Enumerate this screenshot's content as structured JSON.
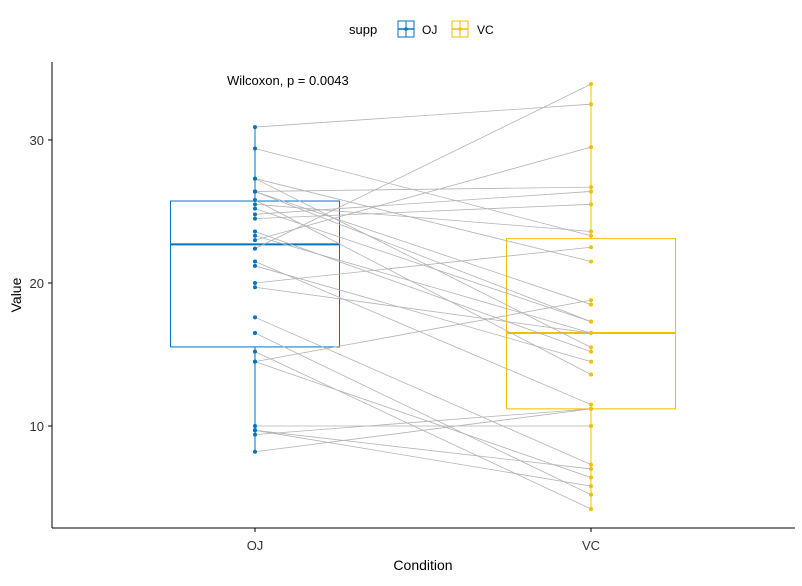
{
  "chart_data": {
    "type": "boxplot-paired",
    "title": "",
    "xlabel": "Condition",
    "ylabel": "Value",
    "ylim": [
      2.87,
      35.45
    ],
    "yticks": [
      10,
      20,
      30
    ],
    "categories": [
      "OJ",
      "VC"
    ],
    "legend": {
      "title": "supp",
      "placement": "top",
      "entries": [
        "OJ",
        "VC"
      ]
    },
    "colors": {
      "OJ": "#0073C2",
      "VC": "#EFC000",
      "lines": "#b3b3b3"
    },
    "annotation": "Wilcoxon, p = 0.0043",
    "grid": false,
    "series": [
      {
        "name": "OJ",
        "values": [
          15.2,
          21.5,
          17.6,
          9.7,
          14.5,
          10,
          8.2,
          9.4,
          16.5,
          9.7,
          19.7,
          23.3,
          23.6,
          26.4,
          20,
          25.2,
          25.8,
          21.2,
          14.5,
          27.3,
          25.5,
          26.4,
          22.4,
          24.5,
          24.8,
          30.9,
          26.4,
          27.3,
          29.4,
          23
        ]
      },
      {
        "name": "VC",
        "values": [
          4.2,
          11.5,
          7.3,
          5.8,
          6.4,
          10,
          11.2,
          11.2,
          5.2,
          7,
          16.5,
          16.5,
          15.2,
          17.3,
          22.5,
          17.3,
          13.6,
          14.5,
          18.8,
          15.5,
          23.6,
          18.5,
          33.9,
          25.5,
          26.4,
          32.5,
          26.7,
          21.5,
          23.3,
          29.5
        ]
      }
    ],
    "box_stats": {
      "OJ": {
        "min": 8.2,
        "q1": 15.53,
        "median": 22.7,
        "q3": 25.73,
        "max": 30.9
      },
      "VC": {
        "min": 4.2,
        "q1": 11.2,
        "median": 16.5,
        "q3": 23.1,
        "max": 33.9
      }
    }
  }
}
